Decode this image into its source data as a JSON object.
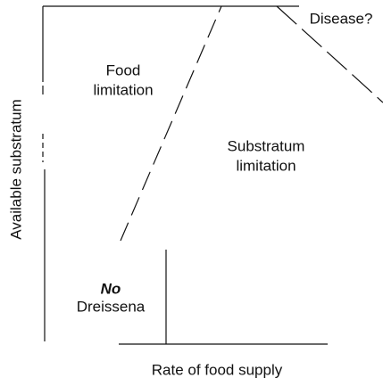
{
  "axes": {
    "x_label": "Rate of food supply",
    "y_label": "Available substratum"
  },
  "regions": [
    {
      "lines": [
        "Disease?"
      ]
    },
    {
      "lines": [
        "Food",
        "limitation"
      ]
    },
    {
      "lines": [
        "Substratum",
        "limitation"
      ]
    },
    {
      "lines": [
        "No",
        "Dreissena"
      ]
    }
  ]
}
